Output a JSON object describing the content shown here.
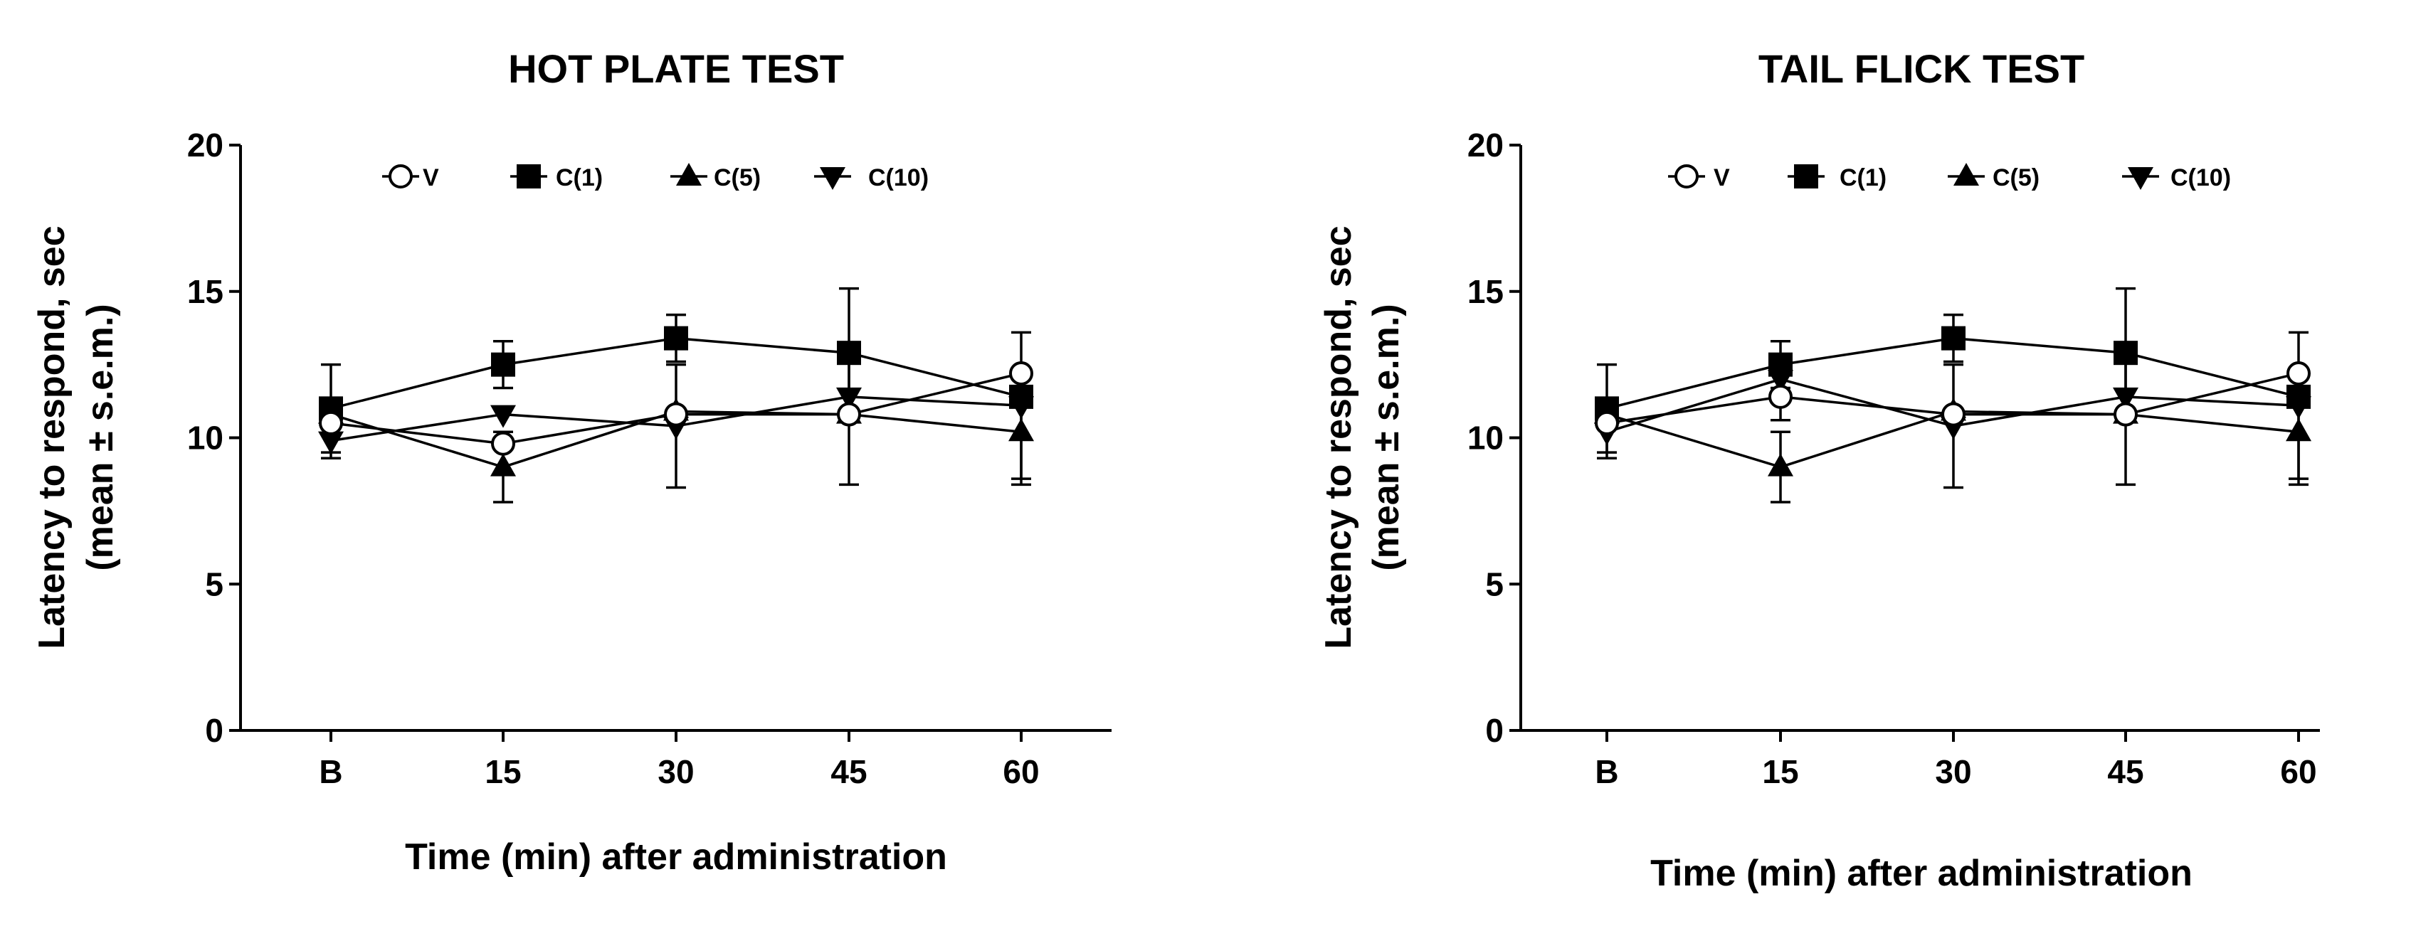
{
  "chart_data": [
    {
      "type": "line",
      "title": "HOT PLATE TEST",
      "xlabel": "Time (min) after administration",
      "ylabel": [
        "Latency to respond, sec",
        "(mean ± s.e.m.)"
      ],
      "categories": [
        "B",
        "15",
        "30",
        "45",
        "60"
      ],
      "ylim": [
        0,
        20
      ],
      "yticks": [
        0,
        5,
        10,
        15,
        20
      ],
      "ytick_labels": [
        "0",
        "5",
        "10",
        "15",
        "20"
      ],
      "grid": false,
      "legend_position": "top",
      "series": [
        {
          "name": "V",
          "marker": "circle-open",
          "values": [
            10.5,
            9.8,
            10.8,
            10.8,
            12.2
          ],
          "errors": [
            0,
            0,
            0,
            2.4,
            0
          ]
        },
        {
          "name": "C(1)",
          "marker": "square",
          "values": [
            11.0,
            12.5,
            13.4,
            12.9,
            11.4
          ],
          "errors": [
            1.5,
            0.8,
            0.8,
            2.2,
            0
          ]
        },
        {
          "name": "C(5)",
          "marker": "triangle-up",
          "values": [
            10.8,
            9.0,
            10.9,
            10.8,
            10.2
          ],
          "errors": [
            0,
            1.2,
            0,
            0,
            1.8
          ]
        },
        {
          "name": "C(10)",
          "marker": "triangle-down",
          "values": [
            9.9,
            10.8,
            10.4,
            11.4,
            11.1
          ],
          "errors": [
            0.6,
            0,
            2.1,
            0,
            2.5
          ]
        }
      ]
    },
    {
      "type": "line",
      "title": "TAIL FLICK TEST",
      "xlabel": "Time (min) after administration",
      "ylabel": [
        "Latency to respond, sec",
        "(mean ± s.e.m.)"
      ],
      "categories": [
        "B",
        "15",
        "30",
        "45",
        "60"
      ],
      "ylim": [
        0,
        20
      ],
      "yticks": [
        0,
        5,
        10,
        15,
        20
      ],
      "ytick_labels": [
        "0",
        "5",
        "10",
        "15",
        "20"
      ],
      "grid": false,
      "legend_position": "top",
      "series": [
        {
          "name": "V",
          "marker": "circle-open",
          "values": [
            10.5,
            11.4,
            10.8,
            10.8,
            12.2
          ],
          "errors": [
            0,
            0.8,
            0,
            2.4,
            0
          ]
        },
        {
          "name": "C(1)",
          "marker": "square",
          "values": [
            11.0,
            12.5,
            13.4,
            12.9,
            11.4
          ],
          "errors": [
            1.5,
            0.8,
            0.8,
            2.2,
            0
          ]
        },
        {
          "name": "C(5)",
          "marker": "triangle-up",
          "values": [
            10.8,
            9.0,
            10.9,
            10.8,
            10.2
          ],
          "errors": [
            0,
            1.2,
            0,
            0,
            1.8
          ]
        },
        {
          "name": "C(10)",
          "marker": "triangle-down",
          "values": [
            10.2,
            12.0,
            10.4,
            11.4,
            11.1
          ],
          "errors": [
            0.9,
            0,
            2.1,
            0,
            2.5
          ]
        }
      ]
    }
  ]
}
